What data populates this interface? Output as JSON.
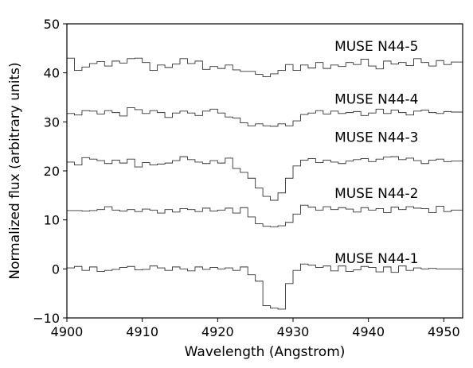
{
  "chart_data": {
    "type": "line",
    "style": "step",
    "xlabel": "Wavelength (Angstrom)",
    "ylabel": "Normalized flux (arbitrary units)",
    "xlim": [
      4900,
      4952.5
    ],
    "ylim": [
      -10,
      50
    ],
    "xticks": [
      4900,
      4910,
      4920,
      4930,
      4940,
      4950
    ],
    "yticks": [
      -10,
      0,
      10,
      20,
      30,
      40,
      50
    ],
    "xtick_labels": [
      "4900",
      "4910",
      "4920",
      "4930",
      "4940",
      "4950"
    ],
    "ytick_labels": [
      "−10",
      "0",
      "10",
      "20",
      "30",
      "40",
      "50"
    ],
    "grid": false,
    "line_color": "#333333",
    "bin_width": 1.0,
    "x_start": 4900,
    "series": [
      {
        "name": "MUSE N44-1",
        "label_x": 4935.5,
        "label_y": 1.2,
        "values": [
          0.2,
          0.5,
          -0.3,
          0.4,
          -0.5,
          -0.3,
          -0.1,
          0.3,
          0.5,
          -0.2,
          -0.1,
          0.6,
          0.2,
          -0.3,
          0.4,
          0.0,
          -0.4,
          0.4,
          -0.1,
          0.3,
          0.0,
          0.2,
          -0.3,
          0.4,
          -1.2,
          -2.5,
          -7.5,
          -8.0,
          -8.2,
          -3.0,
          -0.3,
          1.0,
          0.8,
          0.3,
          0.6,
          -0.4,
          0.6,
          -0.5,
          -0.2,
          0.5,
          0.3,
          -0.6,
          0.4,
          -0.7,
          0.6,
          -0.3,
          0.2,
          0.0,
          0.1,
          0.0,
          0.0,
          0.0,
          0.0
        ]
      },
      {
        "name": "MUSE N44-2",
        "label_x": 4935.5,
        "label_y": 14.5,
        "values": [
          11.9,
          11.9,
          11.8,
          11.9,
          12.1,
          12.7,
          12.0,
          11.8,
          12.1,
          11.7,
          12.2,
          12.0,
          11.4,
          12.1,
          11.6,
          12.3,
          12.1,
          11.7,
          12.4,
          11.8,
          12.0,
          12.4,
          11.4,
          12.5,
          10.6,
          9.2,
          8.7,
          8.6,
          8.8,
          9.5,
          11.2,
          13.0,
          12.6,
          12.0,
          12.7,
          12.1,
          12.5,
          12.2,
          11.6,
          12.5,
          12.0,
          12.3,
          11.5,
          12.6,
          12.1,
          12.7,
          12.4,
          12.3,
          11.5,
          12.8,
          11.7,
          12.0,
          12.0
        ]
      },
      {
        "name": "MUSE N44-3",
        "label_x": 4935.5,
        "label_y": 25.9,
        "values": [
          21.8,
          21.2,
          22.7,
          22.4,
          22.1,
          21.5,
          22.2,
          21.6,
          22.4,
          20.8,
          21.7,
          21.2,
          21.4,
          21.6,
          22.1,
          22.9,
          22.3,
          21.8,
          21.5,
          22.1,
          21.6,
          22.6,
          20.5,
          19.7,
          18.5,
          16.5,
          14.8,
          14.0,
          15.5,
          18.5,
          21.0,
          22.2,
          22.5,
          21.7,
          22.2,
          21.8,
          21.5,
          22.0,
          22.3,
          22.5,
          21.9,
          22.4,
          22.8,
          22.9,
          22.3,
          22.6,
          22.1,
          21.5,
          22.2,
          22.4,
          21.9,
          22.0,
          22.0
        ]
      },
      {
        "name": "MUSE N44-4",
        "label_x": 4935.5,
        "label_y": 33.7,
        "values": [
          31.7,
          31.4,
          32.3,
          32.2,
          31.6,
          32.3,
          31.9,
          31.2,
          32.9,
          32.5,
          31.7,
          32.3,
          31.9,
          30.9,
          31.8,
          32.2,
          31.8,
          31.3,
          32.2,
          32.6,
          31.8,
          31.0,
          30.8,
          29.8,
          29.2,
          29.6,
          29.2,
          29.1,
          29.6,
          29.2,
          30.2,
          31.5,
          31.8,
          32.3,
          31.6,
          32.2,
          31.7,
          31.9,
          32.1,
          31.3,
          31.8,
          32.6,
          31.7,
          32.4,
          31.9,
          31.4,
          32.2,
          32.4,
          31.9,
          31.7,
          32.1,
          32.0,
          32.0
        ]
      },
      {
        "name": "MUSE N44-5",
        "label_x": 4935.5,
        "label_y": 44.5,
        "values": [
          43.0,
          40.5,
          41.2,
          41.9,
          42.3,
          41.4,
          42.4,
          42.0,
          42.9,
          43.0,
          42.1,
          40.5,
          41.6,
          41.1,
          41.8,
          42.9,
          41.9,
          42.4,
          40.7,
          41.3,
          40.9,
          41.6,
          40.6,
          40.3,
          40.3,
          39.7,
          39.2,
          39.8,
          40.5,
          41.7,
          40.5,
          41.6,
          41.0,
          42.1,
          40.9,
          41.6,
          41.3,
          42.1,
          41.7,
          42.8,
          41.4,
          40.8,
          42.4,
          41.8,
          42.1,
          41.5,
          42.9,
          42.1,
          41.4,
          42.5,
          41.7,
          42.2,
          42.2
        ]
      }
    ]
  }
}
